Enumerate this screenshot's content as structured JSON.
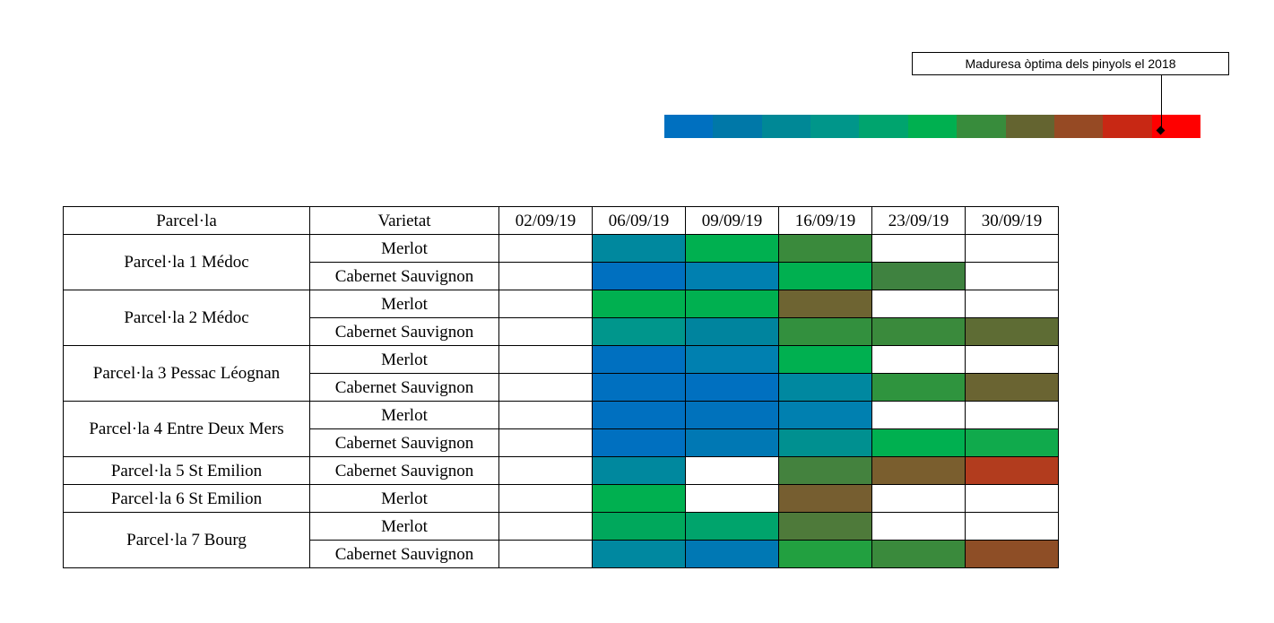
{
  "legend": {
    "callout_text": "Maduresa òptima dels pinyols el 2018",
    "scale_colors": [
      "#0070c0",
      "#0078a8",
      "#008896",
      "#00968a",
      "#00a46e",
      "#00b050",
      "#388c3c",
      "#646430",
      "#964a24",
      "#c82814",
      "#ff0000"
    ]
  },
  "table": {
    "headers": [
      "Parcel·la",
      "Varietat",
      "02/09/19",
      "06/09/19",
      "09/09/19",
      "16/09/19",
      "23/09/19",
      "30/09/19"
    ]
  },
  "chart_data": {
    "type": "heatmap",
    "dates": [
      "02/09/19",
      "06/09/19",
      "09/09/19",
      "16/09/19",
      "23/09/19",
      "30/09/19"
    ],
    "parcels": [
      {
        "name": "Parcel·la 1 Médoc",
        "varieties": [
          {
            "name": "Merlot",
            "colors": [
              "#ffffff",
              "#00889e",
              "#00b050",
              "#3a8a3c",
              "#ffffff",
              "#ffffff"
            ]
          },
          {
            "name": "Cabernet Sauvignon",
            "colors": [
              "#ffffff",
              "#0070c0",
              "#0080b0",
              "#00b050",
              "#3f8240",
              "#ffffff"
            ]
          }
        ]
      },
      {
        "name": "Parcel·la 2 Médoc",
        "varieties": [
          {
            "name": "Merlot",
            "colors": [
              "#ffffff",
              "#00b050",
              "#00b050",
              "#6e6432",
              "#ffffff",
              "#ffffff"
            ]
          },
          {
            "name": "Cabernet Sauvignon",
            "colors": [
              "#ffffff",
              "#00968c",
              "#00849e",
              "#33903e",
              "#3a8a3c",
              "#5e6c34"
            ]
          }
        ]
      },
      {
        "name": "Parcel·la 3 Pessac Léognan",
        "varieties": [
          {
            "name": "Merlot",
            "colors": [
              "#ffffff",
              "#0070c0",
              "#0080b0",
              "#00b050",
              "#ffffff",
              "#ffffff"
            ]
          },
          {
            "name": "Cabernet Sauvignon",
            "colors": [
              "#ffffff",
              "#0070c0",
              "#0070c0",
              "#0088a0",
              "#2f943e",
              "#6a6432"
            ]
          }
        ]
      },
      {
        "name": "Parcel·la 4 Entre Deux Mers",
        "varieties": [
          {
            "name": "Merlot",
            "colors": [
              "#ffffff",
              "#0070c0",
              "#0072bc",
              "#0080b0",
              "#ffffff",
              "#ffffff"
            ]
          },
          {
            "name": "Cabernet Sauvignon",
            "colors": [
              "#ffffff",
              "#0070c0",
              "#0078b4",
              "#009090",
              "#00b050",
              "#10aa4c"
            ]
          }
        ]
      },
      {
        "name": "Parcel·la 5 St Emilion",
        "varieties": [
          {
            "name": "Cabernet Sauvignon",
            "colors": [
              "#ffffff",
              "#00889e",
              "#ffffff",
              "#44823e",
              "#7a5e2e",
              "#b23c1e"
            ]
          }
        ]
      },
      {
        "name": "Parcel·la 6 St Emilion",
        "varieties": [
          {
            "name": "Merlot",
            "colors": [
              "#ffffff",
              "#00b050",
              "#ffffff",
              "#765e30",
              "#ffffff",
              "#ffffff"
            ]
          }
        ]
      },
      {
        "name": "Parcel·la 7 Bourg",
        "varieties": [
          {
            "name": "Merlot",
            "colors": [
              "#ffffff",
              "#00a85c",
              "#00a46c",
              "#4e7a3a",
              "#ffffff",
              "#ffffff"
            ]
          },
          {
            "name": "Cabernet Sauvignon",
            "colors": [
              "#ffffff",
              "#0088a0",
              "#0078b4",
              "#22a040",
              "#3a8a3c",
              "#8e4e26"
            ]
          }
        ]
      }
    ]
  }
}
